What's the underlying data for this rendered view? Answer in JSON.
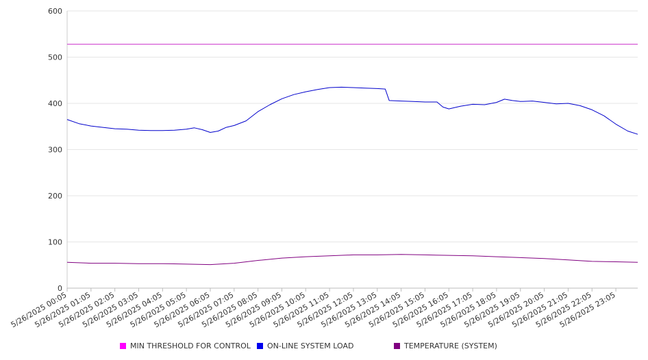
{
  "chart_data": {
    "type": "line",
    "title": "",
    "xlabel": "",
    "ylabel": "",
    "ylim": [
      0,
      600
    ],
    "yticks": [
      0,
      100,
      200,
      300,
      400,
      500,
      600
    ],
    "grid": true,
    "legend_position": "bottom",
    "x_tick_labels": [
      "5/26/2025 00:05",
      "5/26/2025 01:05",
      "5/26/2025 02:05",
      "5/26/2025 03:05",
      "5/26/2025 04:05",
      "5/26/2025 05:05",
      "5/26/2025 06:05",
      "5/26/2025 07:05",
      "5/26/2025 08:05",
      "5/26/2025 09:05",
      "5/26/2025 10:05",
      "5/26/2025 11:05",
      "5/26/2025 12:05",
      "5/26/2025 13:05",
      "5/26/2025 14:05",
      "5/26/2025 15:05",
      "5/26/2025 16:05",
      "5/26/2025 17:05",
      "5/26/2025 18:05",
      "5/26/2025 19:05",
      "5/26/2025 20:05",
      "5/26/2025 21:05",
      "5/26/2025 22:05",
      "5/26/2025 23:05"
    ],
    "x_range": [
      "5/26/2025 00:05",
      "5/26/2025 24:00"
    ],
    "series": [
      {
        "name": "MIN THRESHOLD FOR CONTROL",
        "color": "#cc33cc",
        "legend_color": "#ff00ff",
        "points": [
          [
            "5/26/2025 00:05",
            528
          ],
          [
            "5/26/2025 24:00",
            528
          ]
        ]
      },
      {
        "name": "ON-LINE SYSTEM LOAD",
        "color": "#0000cc",
        "legend_color": "#0000ee",
        "points": [
          [
            "5/26/2025 00:05",
            365
          ],
          [
            "5/26/2025 00:35",
            356
          ],
          [
            "5/26/2025 01:05",
            351
          ],
          [
            "5/26/2025 01:35",
            348
          ],
          [
            "5/26/2025 02:05",
            345
          ],
          [
            "5/26/2025 02:35",
            344
          ],
          [
            "5/26/2025 03:05",
            342
          ],
          [
            "5/26/2025 03:35",
            341
          ],
          [
            "5/26/2025 04:05",
            341
          ],
          [
            "5/26/2025 04:35",
            342
          ],
          [
            "5/26/2025 05:05",
            344
          ],
          [
            "5/26/2025 05:25",
            347
          ],
          [
            "5/26/2025 05:45",
            343
          ],
          [
            "5/26/2025 06:05",
            337
          ],
          [
            "5/26/2025 06:25",
            340
          ],
          [
            "5/26/2025 06:45",
            348
          ],
          [
            "5/26/2025 07:05",
            352
          ],
          [
            "5/26/2025 07:35",
            362
          ],
          [
            "5/26/2025 08:05",
            382
          ],
          [
            "5/26/2025 08:35",
            397
          ],
          [
            "5/26/2025 09:05",
            410
          ],
          [
            "5/26/2025 09:35",
            419
          ],
          [
            "5/26/2025 10:05",
            425
          ],
          [
            "5/26/2025 10:35",
            430
          ],
          [
            "5/26/2025 11:05",
            434
          ],
          [
            "5/26/2025 11:35",
            435
          ],
          [
            "5/26/2025 12:05",
            434
          ],
          [
            "5/26/2025 12:35",
            433
          ],
          [
            "5/26/2025 13:05",
            432
          ],
          [
            "5/26/2025 13:25",
            431
          ],
          [
            "5/26/2025 13:35",
            406
          ],
          [
            "5/26/2025 14:05",
            405
          ],
          [
            "5/26/2025 14:35",
            404
          ],
          [
            "5/26/2025 15:05",
            403
          ],
          [
            "5/26/2025 15:35",
            403
          ],
          [
            "5/26/2025 15:50",
            392
          ],
          [
            "5/26/2025 16:05",
            388
          ],
          [
            "5/26/2025 16:35",
            394
          ],
          [
            "5/26/2025 17:05",
            398
          ],
          [
            "5/26/2025 17:35",
            397
          ],
          [
            "5/26/2025 18:05",
            402
          ],
          [
            "5/26/2025 18:25",
            409
          ],
          [
            "5/26/2025 18:45",
            406
          ],
          [
            "5/26/2025 19:05",
            404
          ],
          [
            "5/26/2025 19:35",
            405
          ],
          [
            "5/26/2025 20:05",
            402
          ],
          [
            "5/26/2025 20:35",
            399
          ],
          [
            "5/26/2025 21:05",
            400
          ],
          [
            "5/26/2025 21:35",
            395
          ],
          [
            "5/26/2025 22:05",
            386
          ],
          [
            "5/26/2025 22:35",
            373
          ],
          [
            "5/26/2025 23:05",
            355
          ],
          [
            "5/26/2025 23:35",
            340
          ],
          [
            "5/26/2025 24:00",
            333
          ]
        ]
      },
      {
        "name": "TEMPERATURE (SYSTEM)",
        "color": "#800080",
        "legend_color": "#800080",
        "points": [
          [
            "5/26/2025 00:05",
            56
          ],
          [
            "5/26/2025 01:05",
            54
          ],
          [
            "5/26/2025 02:05",
            54
          ],
          [
            "5/26/2025 03:05",
            53
          ],
          [
            "5/26/2025 04:05",
            53
          ],
          [
            "5/26/2025 05:05",
            52
          ],
          [
            "5/26/2025 06:05",
            51
          ],
          [
            "5/26/2025 07:05",
            54
          ],
          [
            "5/26/2025 08:05",
            60
          ],
          [
            "5/26/2025 09:05",
            65
          ],
          [
            "5/26/2025 10:05",
            68
          ],
          [
            "5/26/2025 11:05",
            70
          ],
          [
            "5/26/2025 12:05",
            72
          ],
          [
            "5/26/2025 13:05",
            72
          ],
          [
            "5/26/2025 14:05",
            73
          ],
          [
            "5/26/2025 15:05",
            72
          ],
          [
            "5/26/2025 16:05",
            71
          ],
          [
            "5/26/2025 17:05",
            70
          ],
          [
            "5/26/2025 18:05",
            68
          ],
          [
            "5/26/2025 19:05",
            66
          ],
          [
            "5/26/2025 20:05",
            64
          ],
          [
            "5/26/2025 21:05",
            61
          ],
          [
            "5/26/2025 22:05",
            58
          ],
          [
            "5/26/2025 23:05",
            57
          ],
          [
            "5/26/2025 24:00",
            56
          ]
        ]
      }
    ]
  }
}
